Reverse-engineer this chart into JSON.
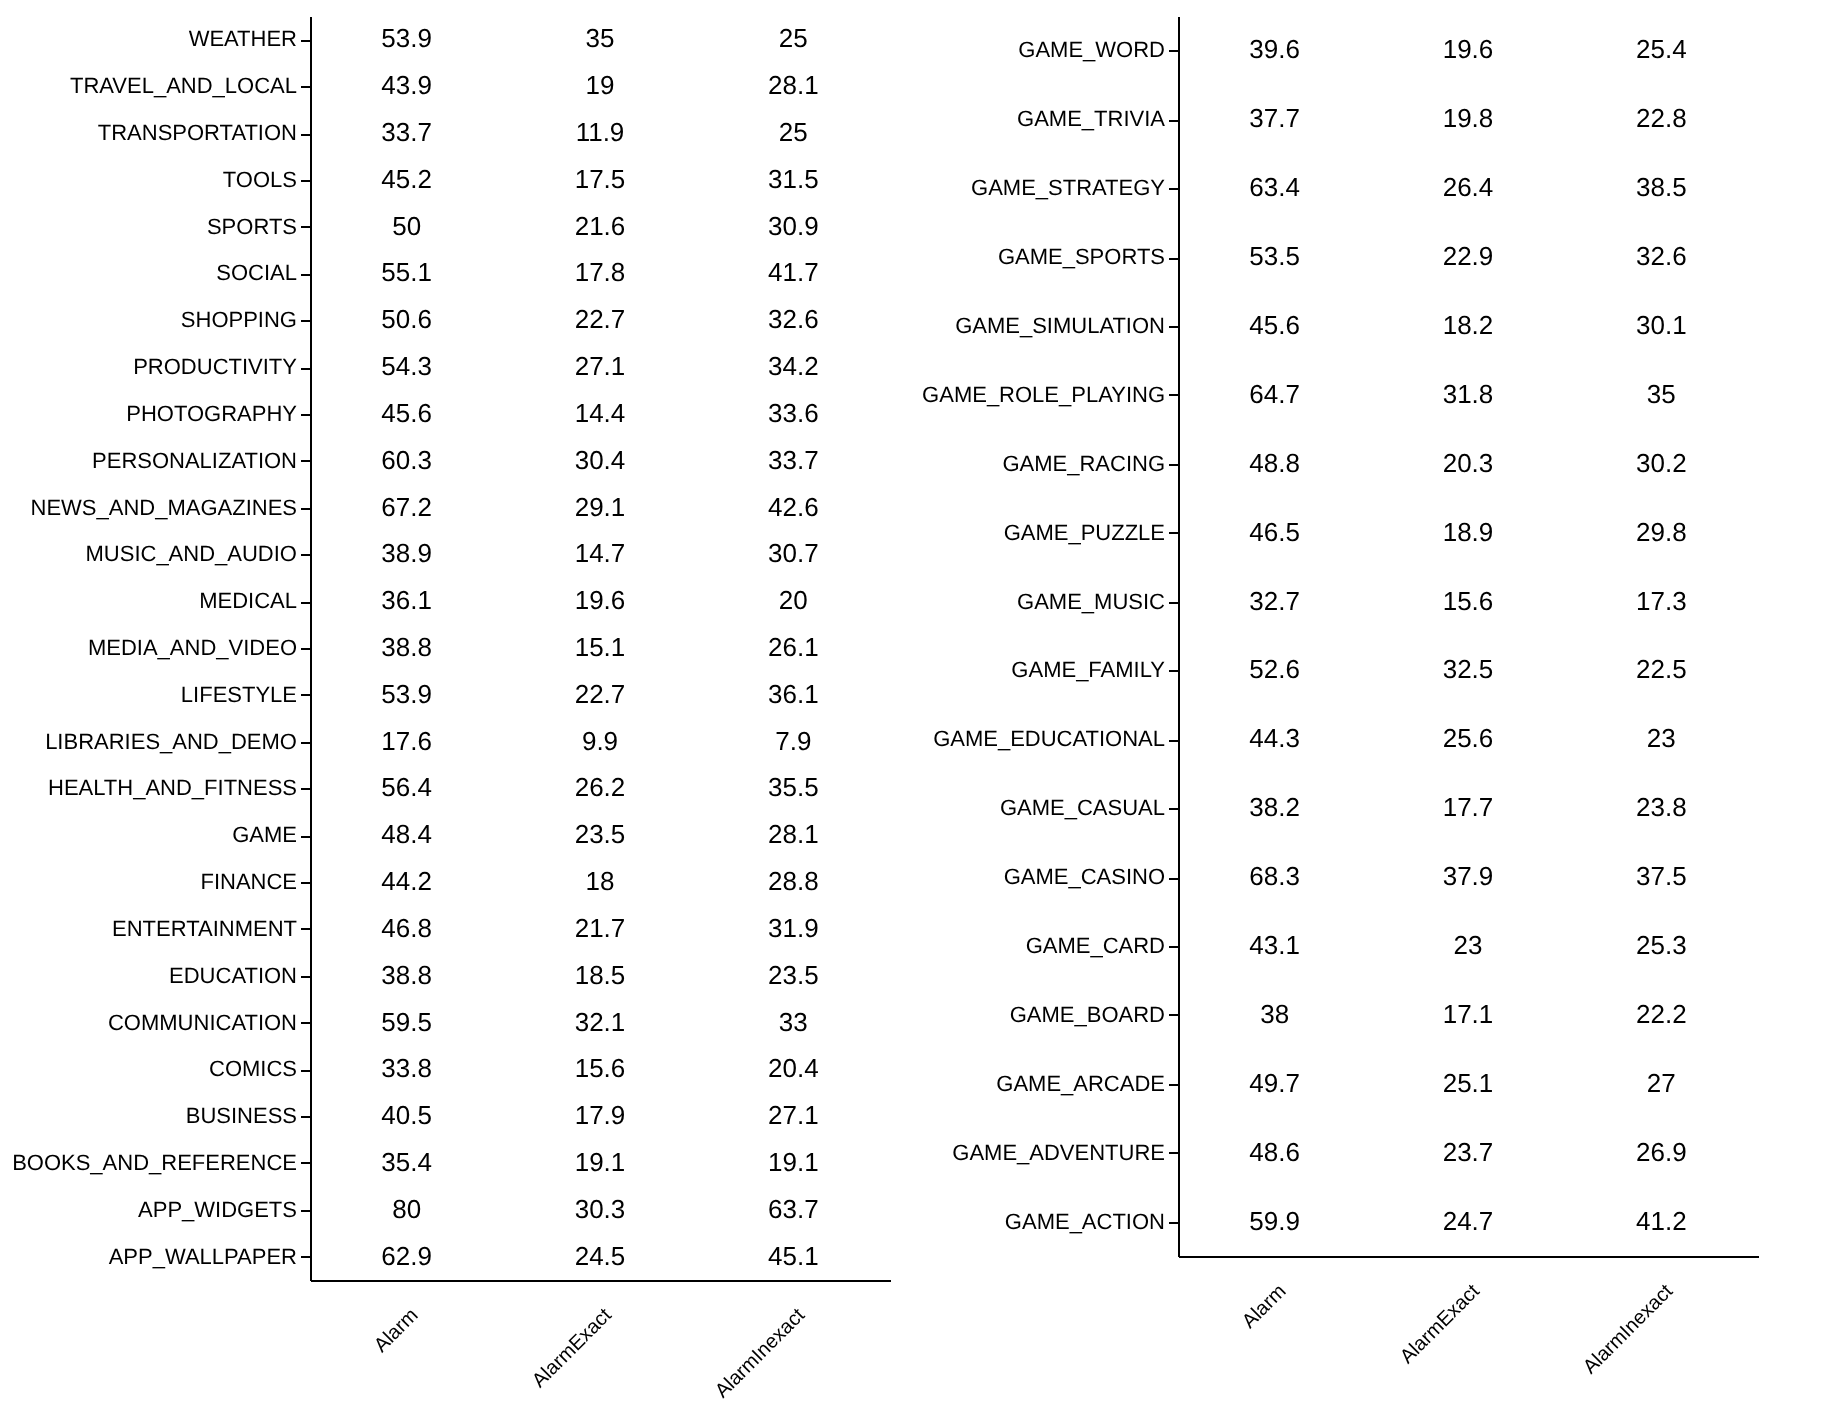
{
  "chart_data": [
    {
      "type": "heatmap",
      "data_labels": true,
      "categories": [
        "Alarm",
        "AlarmExact",
        "AlarmInexact"
      ],
      "y_categories": [
        "WEATHER",
        "TRAVEL_AND_LOCAL",
        "TRANSPORTATION",
        "TOOLS",
        "SPORTS",
        "SOCIAL",
        "SHOPPING",
        "PRODUCTIVITY",
        "PHOTOGRAPHY",
        "PERSONALIZATION",
        "NEWS_AND_MAGAZINES",
        "MUSIC_AND_AUDIO",
        "MEDICAL",
        "MEDIA_AND_VIDEO",
        "LIFESTYLE",
        "LIBRARIES_AND_DEMO",
        "HEALTH_AND_FITNESS",
        "GAME",
        "FINANCE",
        "ENTERTAINMENT",
        "EDUCATION",
        "COMMUNICATION",
        "COMICS",
        "BUSINESS",
        "BOOKS_AND_REFERENCE",
        "APP_WIDGETS",
        "APP_WALLPAPER"
      ],
      "cells": [
        [
          53.9,
          35,
          25
        ],
        [
          43.9,
          19,
          28.1
        ],
        [
          33.7,
          11.9,
          25
        ],
        [
          45.2,
          17.5,
          31.5
        ],
        [
          50,
          21.6,
          30.9
        ],
        [
          55.1,
          17.8,
          41.7
        ],
        [
          50.6,
          22.7,
          32.6
        ],
        [
          54.3,
          27.1,
          34.2
        ],
        [
          45.6,
          14.4,
          33.6
        ],
        [
          60.3,
          30.4,
          33.7
        ],
        [
          67.2,
          29.1,
          42.6
        ],
        [
          38.9,
          14.7,
          30.7
        ],
        [
          36.1,
          19.6,
          20
        ],
        [
          38.8,
          15.1,
          26.1
        ],
        [
          53.9,
          22.7,
          36.1
        ],
        [
          17.6,
          9.9,
          7.9
        ],
        [
          56.4,
          26.2,
          35.5
        ],
        [
          48.4,
          23.5,
          28.1
        ],
        [
          44.2,
          18,
          28.8
        ],
        [
          46.8,
          21.7,
          31.9
        ],
        [
          38.8,
          18.5,
          23.5
        ],
        [
          59.5,
          32.1,
          33
        ],
        [
          33.8,
          15.6,
          20.4
        ],
        [
          40.5,
          17.9,
          27.1
        ],
        [
          35.4,
          19.1,
          19.1
        ],
        [
          80,
          30.3,
          63.7
        ],
        [
          62.9,
          24.5,
          45.1
        ]
      ]
    },
    {
      "type": "heatmap",
      "data_labels": true,
      "categories": [
        "Alarm",
        "AlarmExact",
        "AlarmInexact"
      ],
      "y_categories": [
        "GAME_WORD",
        "GAME_TRIVIA",
        "GAME_STRATEGY",
        "GAME_SPORTS",
        "GAME_SIMULATION",
        "GAME_ROLE_PLAYING",
        "GAME_RACING",
        "GAME_PUZZLE",
        "GAME_MUSIC",
        "GAME_FAMILY",
        "GAME_EDUCATIONAL",
        "GAME_CASUAL",
        "GAME_CASINO",
        "GAME_CARD",
        "GAME_BOARD",
        "GAME_ARCADE",
        "GAME_ADVENTURE",
        "GAME_ACTION"
      ],
      "cells": [
        [
          39.6,
          19.6,
          25.4
        ],
        [
          37.7,
          19.8,
          22.8
        ],
        [
          63.4,
          26.4,
          38.5
        ],
        [
          53.5,
          22.9,
          32.6
        ],
        [
          45.6,
          18.2,
          30.1
        ],
        [
          64.7,
          31.8,
          35
        ],
        [
          48.8,
          20.3,
          30.2
        ],
        [
          46.5,
          18.9,
          29.8
        ],
        [
          32.7,
          15.6,
          17.3
        ],
        [
          52.6,
          32.5,
          22.5
        ],
        [
          44.3,
          25.6,
          23
        ],
        [
          38.2,
          17.7,
          23.8
        ],
        [
          68.3,
          37.9,
          37.5
        ],
        [
          43.1,
          23,
          25.3
        ],
        [
          38,
          17.1,
          22.2
        ],
        [
          49.7,
          25.1,
          27
        ],
        [
          48.6,
          23.7,
          26.9
        ],
        [
          59.9,
          24.7,
          41.2
        ]
      ]
    }
  ]
}
